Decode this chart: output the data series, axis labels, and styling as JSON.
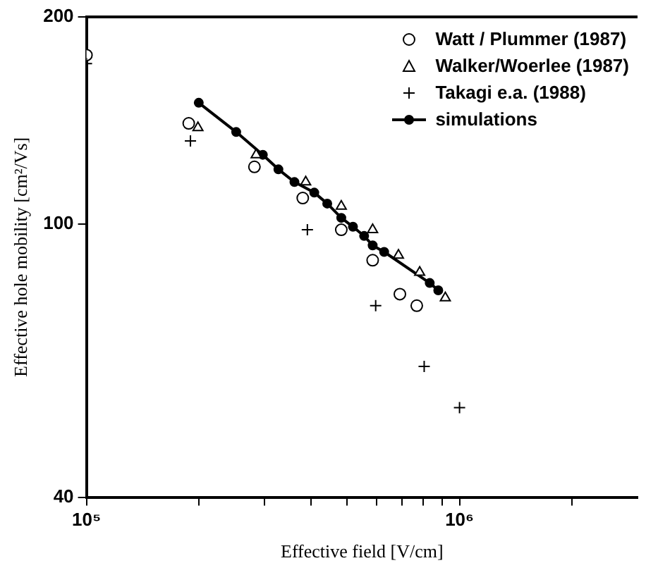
{
  "chart_data": {
    "type": "scatter",
    "xlabel": "Effective field [V/cm]",
    "ylabel": "Effective hole mobility [cm²/Vs]",
    "log": "xy",
    "grid": false,
    "legend": "top right",
    "xlim": [
      100000,
      3000000
    ],
    "xticks": [
      {
        "value": 100000,
        "label": "10⁵"
      },
      {
        "value": 200000,
        "label": null
      },
      {
        "value": 300000,
        "label": null
      },
      {
        "value": 400000,
        "label": null
      },
      {
        "value": 500000,
        "label": null
      },
      {
        "value": 600000,
        "label": null
      },
      {
        "value": 700000,
        "label": null
      },
      {
        "value": 800000,
        "label": null
      },
      {
        "value": 900000,
        "label": null
      },
      {
        "value": 1000000,
        "label": "10⁶"
      },
      {
        "value": 2000000,
        "label": null
      }
    ],
    "ylim": [
      40,
      200
    ],
    "yticks": [
      40,
      100,
      200
    ],
    "series": [
      {
        "name": "Watt / Plummer (1987)",
        "marker": "circle",
        "color": "#000000",
        "x": [
          100000,
          188000,
          282000,
          380000,
          482000,
          585000,
          692000,
          768000
        ],
        "values": [
          176,
          140,
          121,
          109,
          98,
          88.5,
          79,
          76
        ]
      },
      {
        "name": "Walker/Woerlee (1987)",
        "marker": "triangle",
        "color": "#000000",
        "x": [
          199000,
          285000,
          387000,
          482000,
          585000,
          686000,
          782000,
          916000
        ],
        "values": [
          138,
          126,
          115,
          106,
          98,
          90,
          85,
          78
        ]
      },
      {
        "name": "Takagi e.a. (1988)",
        "marker": "cross",
        "color": "#000000",
        "x": [
          100000,
          190000,
          391000,
          596000,
          804000,
          1000000
        ],
        "values": [
          171,
          132,
          98,
          76,
          62,
          54
        ]
      },
      {
        "name": "simulations",
        "type": "line",
        "marker": "circle",
        "line_style": "solid",
        "color": "#000000",
        "x": [
          200000,
          252000,
          297000,
          327000,
          361000,
          408000,
          442000,
          482000,
          518000,
          555000,
          585000,
          628000,
          832000,
          877000
        ],
        "values": [
          150,
          136,
          126,
          120,
          115,
          111,
          107,
          102,
          99,
          96,
          93,
          91,
          82,
          80
        ]
      }
    ]
  }
}
